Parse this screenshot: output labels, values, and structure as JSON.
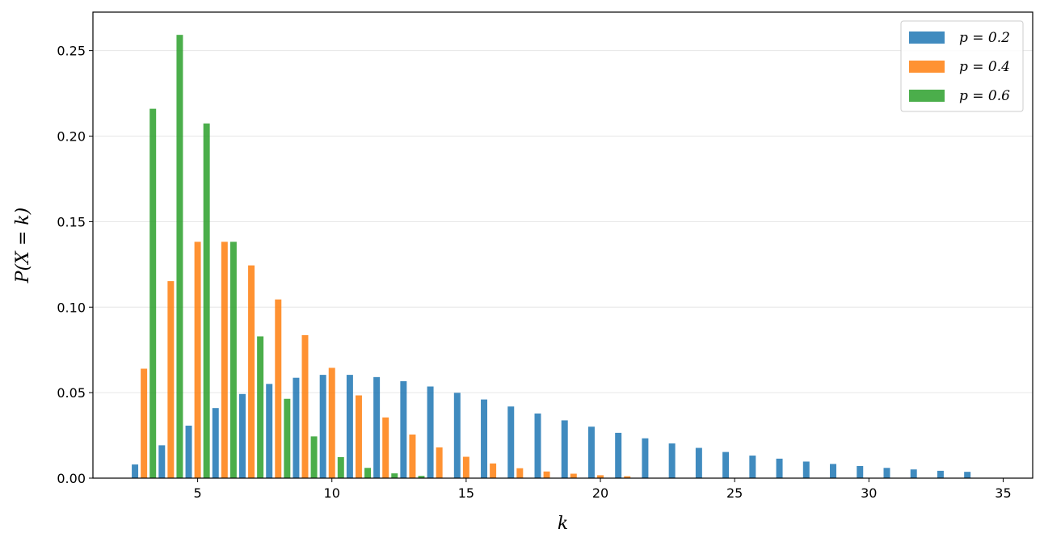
{
  "chart_data": {
    "type": "bar",
    "xlabel": "k",
    "ylabel": "P(X = k)",
    "xlim": [
      1.1,
      36.1
    ],
    "ylim": [
      0,
      0.2725
    ],
    "xticks": [
      5,
      10,
      15,
      20,
      25,
      30,
      35
    ],
    "yticks": [
      0.0,
      0.05,
      0.1,
      0.15,
      0.2,
      0.25
    ],
    "ytick_labels": [
      "0.00",
      "0.05",
      "0.10",
      "0.15",
      "0.20",
      "0.25"
    ],
    "grid": "y",
    "legend_position": "top-right",
    "series": [
      {
        "name": "p = 0.2",
        "color": "#1f77b4",
        "x": [
          3,
          4,
          5,
          6,
          7,
          8,
          9,
          10,
          11,
          12,
          13,
          14,
          15,
          16,
          17,
          18,
          19,
          20,
          21,
          22,
          23,
          24,
          25,
          26,
          27,
          28,
          29,
          30,
          31,
          32,
          33,
          34
        ],
        "values": [
          0.008,
          0.0192,
          0.0307,
          0.041,
          0.0492,
          0.0551,
          0.0587,
          0.0604,
          0.0604,
          0.0591,
          0.0567,
          0.0536,
          0.0499,
          0.046,
          0.0419,
          0.0378,
          0.0338,
          0.0301,
          0.0265,
          0.0233,
          0.0203,
          0.0177,
          0.0153,
          0.0132,
          0.0114,
          0.0097,
          0.0083,
          0.0071,
          0.006,
          0.0051,
          0.0043,
          0.0037
        ]
      },
      {
        "name": "p = 0.4",
        "color": "#ff7f0e",
        "x": [
          3,
          4,
          5,
          6,
          7,
          8,
          9,
          10,
          11,
          12,
          13,
          14,
          15,
          16,
          17,
          18,
          19,
          20,
          21
        ],
        "values": [
          0.064,
          0.1152,
          0.1382,
          0.1382,
          0.1244,
          0.1045,
          0.0836,
          0.0645,
          0.0484,
          0.0355,
          0.0255,
          0.018,
          0.0125,
          0.0086,
          0.0058,
          0.0039,
          0.0026,
          0.0017,
          0.0011
        ]
      },
      {
        "name": "p = 0.6",
        "color": "#2ca02c",
        "x": [
          3,
          4,
          5,
          6,
          7,
          8,
          9,
          10,
          11,
          12,
          13
        ],
        "values": [
          0.216,
          0.2592,
          0.2074,
          0.1382,
          0.0829,
          0.0464,
          0.0244,
          0.0123,
          0.006,
          0.0028,
          0.0013
        ]
      }
    ]
  }
}
